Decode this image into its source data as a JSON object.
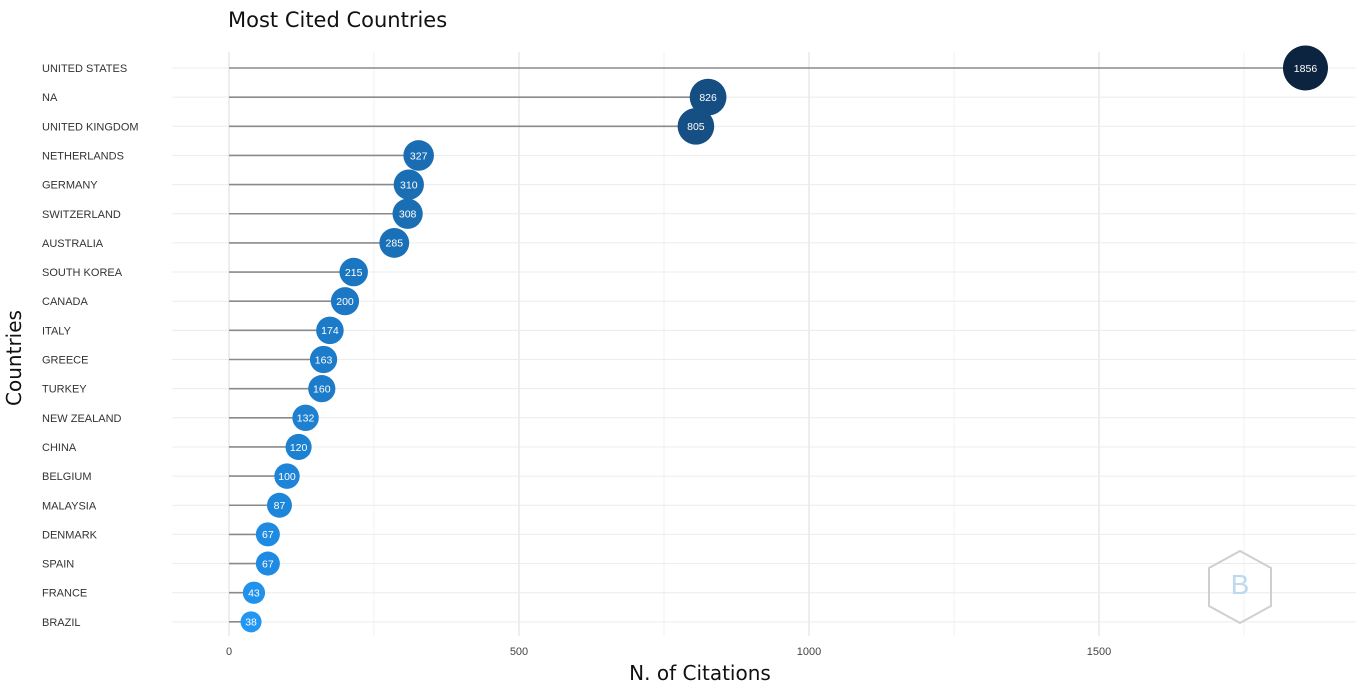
{
  "chart_data": {
    "type": "scatter",
    "subtype": "lollipop",
    "title": "Most Cited Countries",
    "xlabel": "N. of Citations",
    "ylabel": "Countries",
    "categories": [
      "UNITED STATES",
      "NA",
      "UNITED KINGDOM",
      "NETHERLANDS",
      "GERMANY",
      "SWITZERLAND",
      "AUSTRALIA",
      "SOUTH KOREA",
      "CANADA",
      "ITALY",
      "GREECE",
      "TURKEY",
      "NEW ZEALAND",
      "CHINA",
      "BELGIUM",
      "MALAYSIA",
      "DENMARK",
      "SPAIN",
      "FRANCE",
      "BRAZIL"
    ],
    "values": [
      1856,
      826,
      805,
      327,
      310,
      308,
      285,
      215,
      200,
      174,
      163,
      160,
      132,
      120,
      100,
      87,
      67,
      67,
      43,
      38
    ],
    "xticks": [
      0,
      500,
      1000,
      1500
    ],
    "xlim": [
      -95,
      1945
    ],
    "grid": true,
    "color_low": "#2196f3",
    "color_high": "#0d2440",
    "stem_color": "#8a8a8a"
  }
}
